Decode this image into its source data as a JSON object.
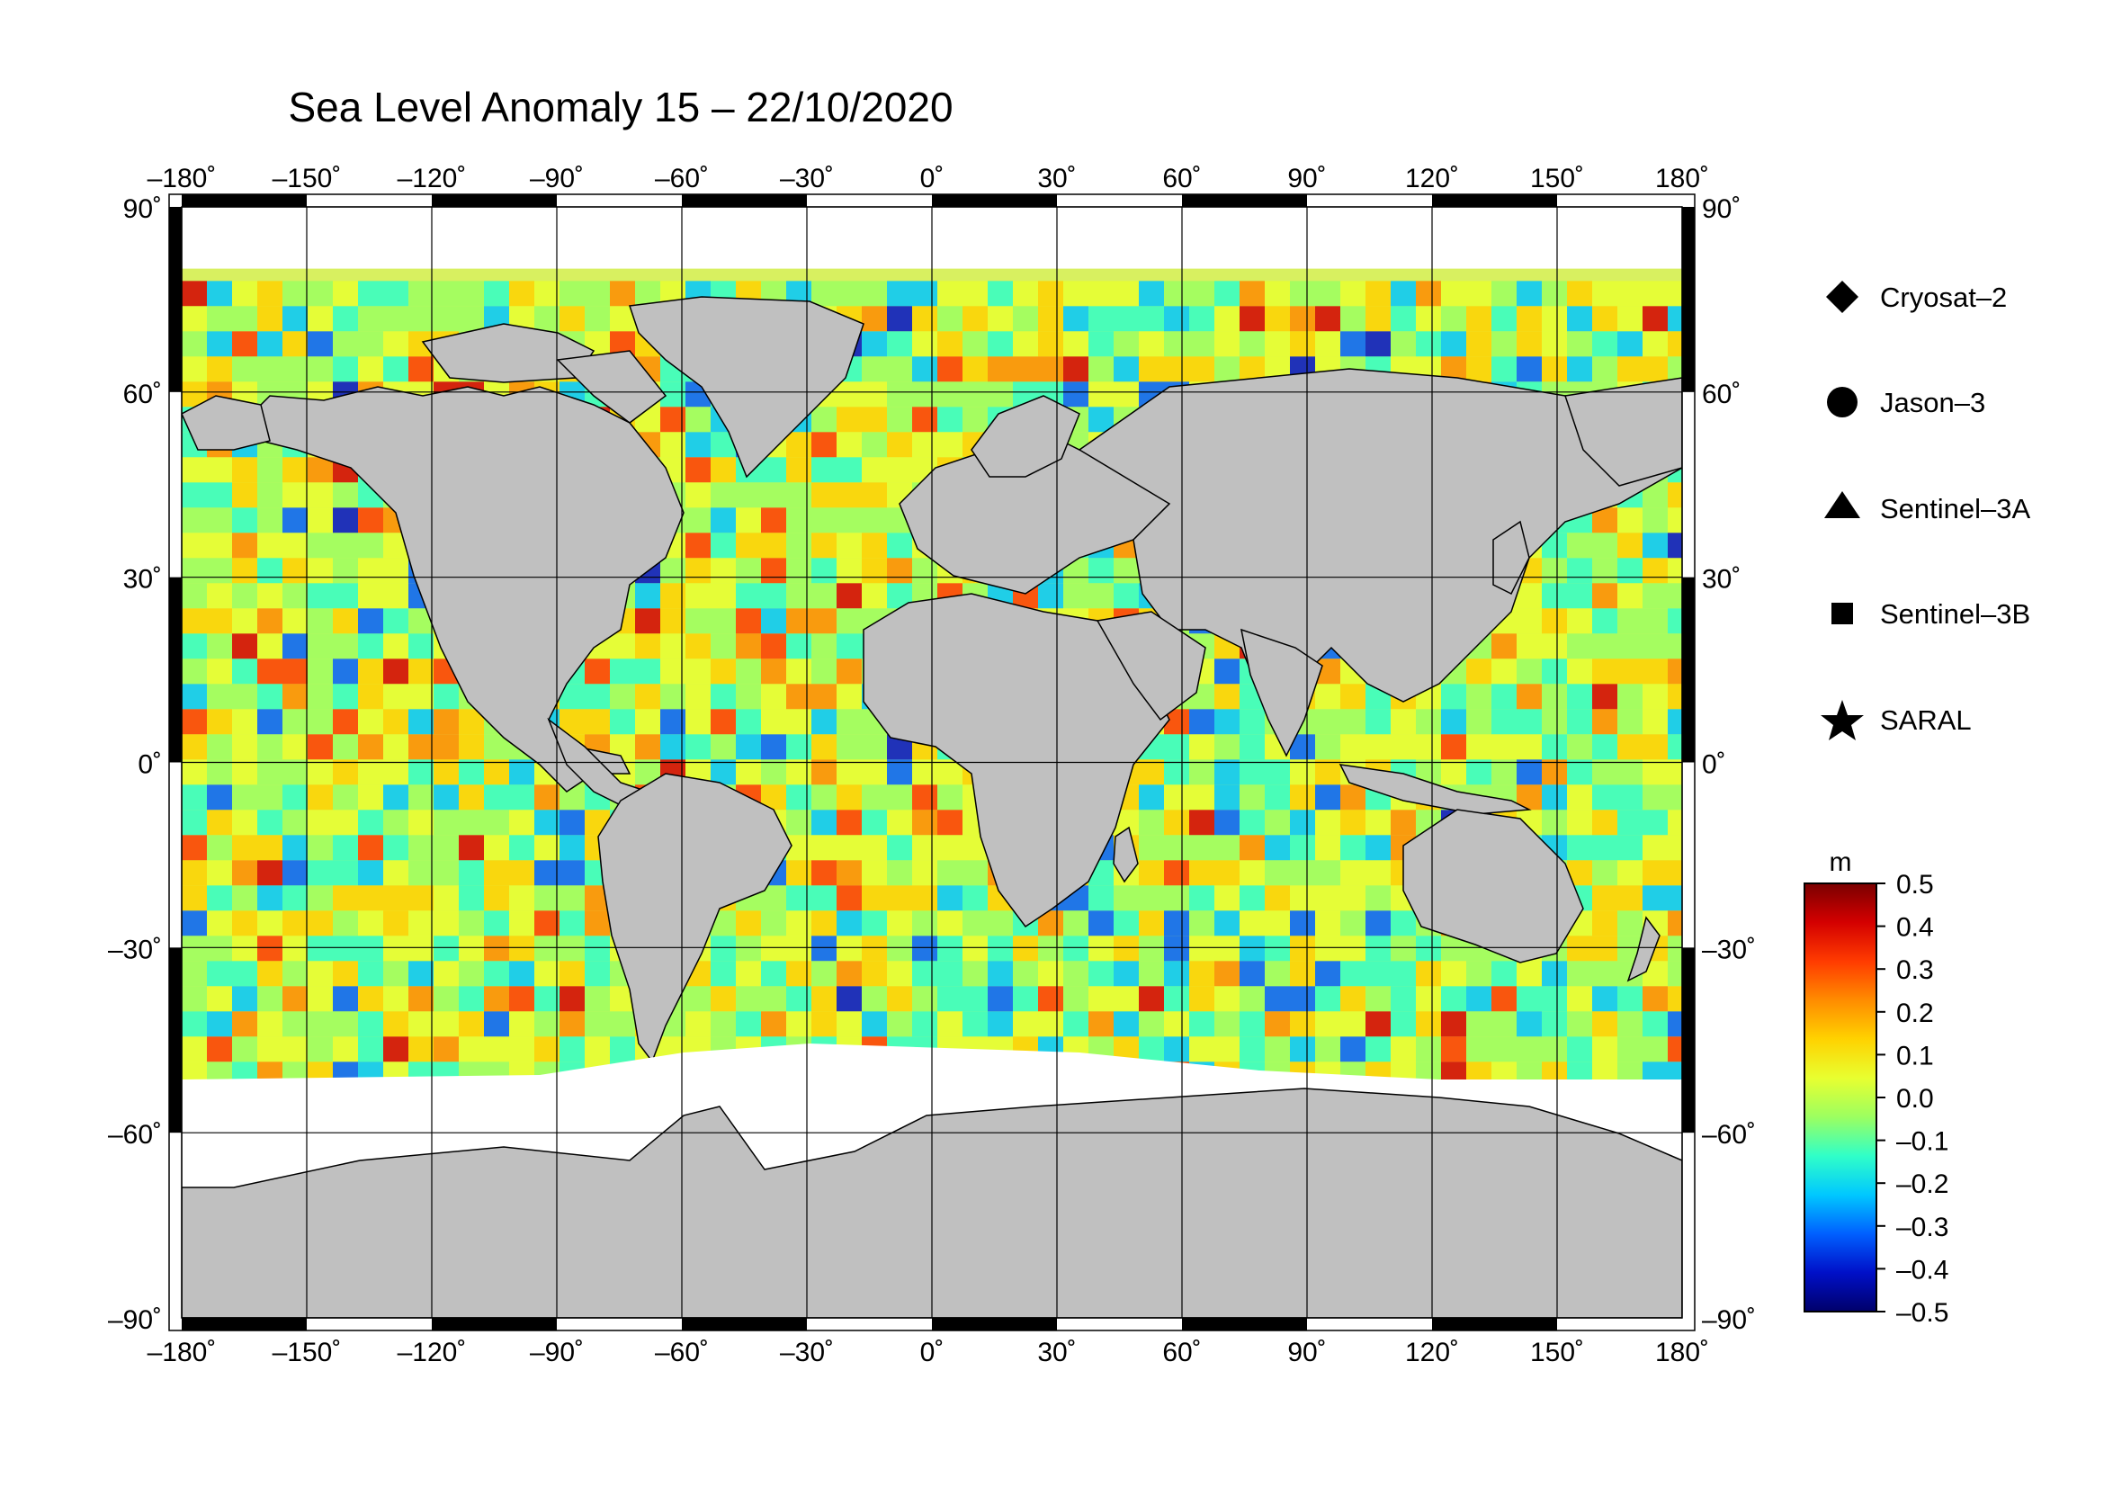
{
  "title": "Sea Level Anomaly 15 – 22/10/2020",
  "lon_ticks": [
    -180,
    -150,
    -120,
    -90,
    -60,
    -30,
    0,
    30,
    60,
    90,
    120,
    150,
    180
  ],
  "lat_ticks": [
    90,
    60,
    30,
    0,
    -30,
    -60,
    -90
  ],
  "missions": [
    {
      "name": "Cryosat–2",
      "symbol": "diamond-icon"
    },
    {
      "name": "Jason–3",
      "symbol": "circle-icon"
    },
    {
      "name": "Sentinel–3A",
      "symbol": "triangle-icon"
    },
    {
      "name": "Sentinel–3B",
      "symbol": "square-icon"
    },
    {
      "name": "SARAL",
      "symbol": "star-icon"
    }
  ],
  "colorbar": {
    "unit": "m",
    "min": -0.5,
    "max": 0.5,
    "tick_labels": [
      "0.5",
      "0.4",
      "0.3",
      "0.2",
      "0.1",
      "0.0",
      "–0.1",
      "–0.2",
      "–0.3",
      "–0.4",
      "–0.5"
    ],
    "colors": [
      "#7a0000",
      "#d40000",
      "#ff3b00",
      "#ff8c00",
      "#ffd200",
      "#e8ff30",
      "#9cff60",
      "#30ffc8",
      "#00c8ff",
      "#0060ff",
      "#0010c8",
      "#00006a"
    ]
  },
  "colors": {
    "land": "#c0c0c0",
    "ice": "#ffffff",
    "ocean_background": "#d8f060",
    "frame": "#000000"
  }
}
